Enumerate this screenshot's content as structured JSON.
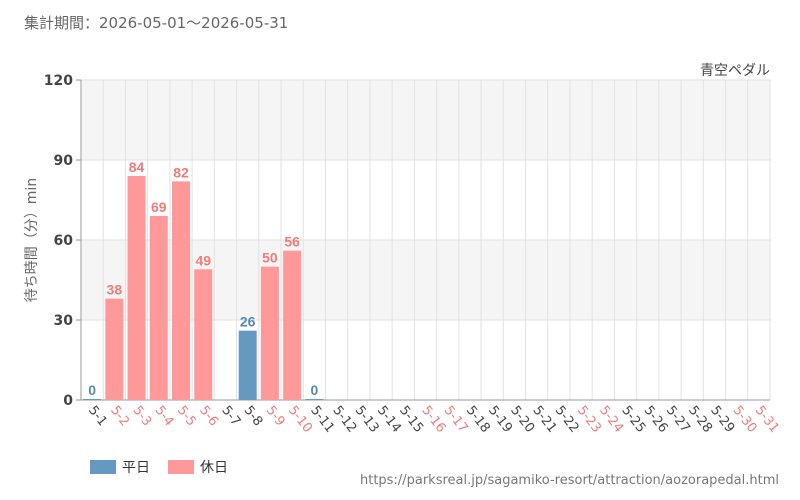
{
  "header": {
    "period": "集計期間：2026-05-01～2026-05-31",
    "attraction": "青空ペダル"
  },
  "legend": {
    "weekday_label": "平日",
    "holiday_label": "休日"
  },
  "source_url": "https://parksreal.jp/sagamiko-resort/attraction/aozorapedal.html",
  "colors": {
    "weekday": "#6699c2",
    "holiday": "#ff9999",
    "weekday_text": "#5588bb",
    "holiday_text": "#f07b7b",
    "tick_weekday": "#444444",
    "tick_holiday": "#f07b7b",
    "band": "#f5f5f5",
    "grid": "#e2e2e2"
  },
  "chart_data": {
    "type": "bar",
    "ylabel": "待ち時間（分）min",
    "ylim": [
      0,
      120
    ],
    "yticks": [
      0,
      30,
      60,
      90,
      120
    ],
    "categories": [
      "5-1",
      "5-2",
      "5-3",
      "5-4",
      "5-5",
      "5-6",
      "5-7",
      "5-8",
      "5-9",
      "5-10",
      "5-11",
      "5-12",
      "5-13",
      "5-14",
      "5-15",
      "5-16",
      "5-17",
      "5-18",
      "5-19",
      "5-20",
      "5-21",
      "5-22",
      "5-23",
      "5-24",
      "5-25",
      "5-26",
      "5-27",
      "5-28",
      "5-29",
      "5-30",
      "5-31"
    ],
    "day_type": [
      "weekday",
      "holiday",
      "holiday",
      "holiday",
      "holiday",
      "holiday",
      "weekday",
      "weekday",
      "holiday",
      "holiday",
      "weekday",
      "weekday",
      "weekday",
      "weekday",
      "weekday",
      "holiday",
      "holiday",
      "weekday",
      "weekday",
      "weekday",
      "weekday",
      "weekday",
      "holiday",
      "holiday",
      "weekday",
      "weekday",
      "weekday",
      "weekday",
      "weekday",
      "holiday",
      "holiday"
    ],
    "values": [
      0,
      38,
      84,
      69,
      82,
      49,
      null,
      26,
      50,
      56,
      0,
      null,
      null,
      null,
      null,
      null,
      null,
      null,
      null,
      null,
      null,
      null,
      null,
      null,
      null,
      null,
      null,
      null,
      null,
      null,
      null
    ],
    "series": [
      {
        "name": "平日",
        "type": "weekday"
      },
      {
        "name": "休日",
        "type": "holiday"
      }
    ],
    "grid": true
  }
}
